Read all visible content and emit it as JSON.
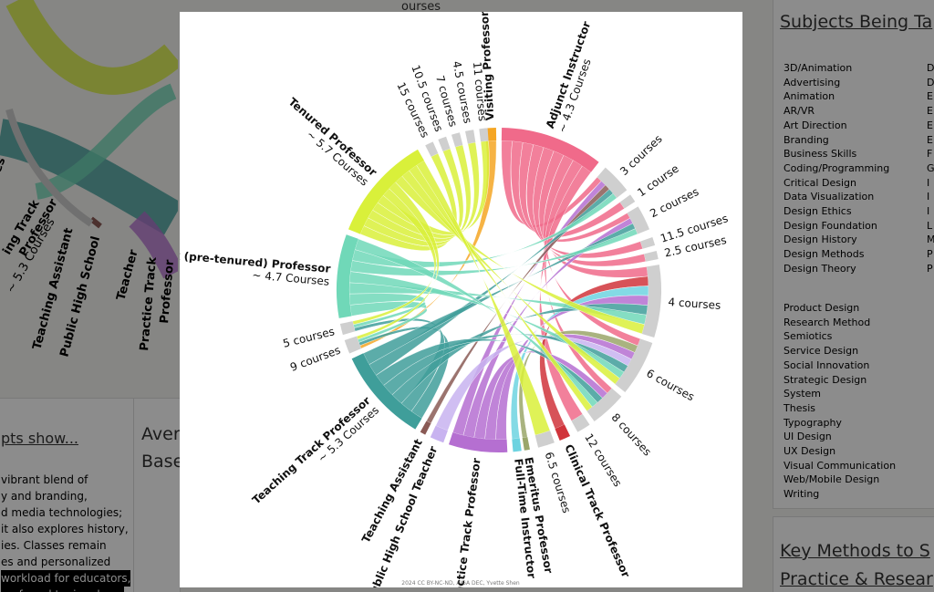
{
  "background": {
    "top_fragment": "ourses",
    "left_chart_labels": [
      "es",
      "ing Track",
      "Professor",
      "~ 5.3 Courses",
      "Teaching Assistant",
      "Public High School",
      "Teacher",
      "Practice Track",
      "Professor"
    ],
    "left_card": {
      "link": "pts show...",
      "lines": [
        "vibrant blend of",
        "y and branding,",
        "d media technologies;",
        "it also explores history,",
        "ies. Classes remain",
        "es and personalized"
      ],
      "highlight": [
        "workload for educators,",
        "preferred topics shape"
      ]
    },
    "middle_card": {
      "title_lines": [
        "Aver",
        "Base"
      ]
    },
    "subjects_panel": {
      "title": "Subjects Being Ta",
      "column_1": [
        "3D/Animation",
        "Advertising",
        "Animation",
        "AR/VR",
        "Art Direction",
        "Branding",
        "Business Skills",
        "Coding/Programming",
        "Critical Design",
        "Data Visualization",
        "Design Ethics",
        "Design Foundation",
        "Design History",
        "Design Methods",
        "Design Theory"
      ],
      "column_1b": [
        "Product Design",
        "Research Method",
        "Semiotics",
        "Service Design",
        "Social Innovation",
        "Strategic Design",
        "System",
        "Thesis",
        "Typography",
        "UI Design",
        "UX Design",
        "Visual Communication",
        "Web/Mobile  Design",
        "Writing"
      ],
      "column_2": [
        "D",
        "D",
        "E",
        "E",
        "E",
        "E",
        "F",
        "G",
        "I",
        "I",
        "I",
        "L",
        "M",
        "P",
        "P"
      ]
    },
    "methods_panel": {
      "title_lines": [
        "Key Methods to S",
        "Practice & Resear"
      ]
    }
  },
  "lightbox": {
    "roles": [
      {
        "name": "Visiting Professor"
      },
      {
        "name": "Adjunct  Instructor",
        "average": "~ 4.3 Courses"
      },
      {
        "name": "Clinical Track Professor"
      },
      {
        "name": "Emeritus Professor"
      },
      {
        "name": "Full-Time Instructor"
      },
      {
        "name": "Practice Track Professor"
      },
      {
        "name": "Public High School Teacher"
      },
      {
        "name": "Teaching Assistant"
      },
      {
        "name": "Teaching Track Professor",
        "average": "~ 5.3 Courses"
      },
      {
        "name": "Tenure Track (pre-tenured) Professor",
        "average": "~ 4.7 Courses"
      },
      {
        "name": "Tenured Professor",
        "average": "~ 5.7 Courses"
      }
    ],
    "course_loads": [
      "3 courses",
      "1 course",
      "2 courses",
      "11.5 courses",
      "2.5 courses",
      "4 courses",
      "6 courses",
      "8 courses",
      "12 courses",
      "6.5 courses",
      "9 courses",
      "5 courses",
      "15 courses",
      "10.5 courses",
      "7 courses",
      "4.5 courses",
      "11 courses"
    ],
    "credit": "2024 CC BY-NC-ND, AIGA DEC, Yvette Shen"
  }
}
